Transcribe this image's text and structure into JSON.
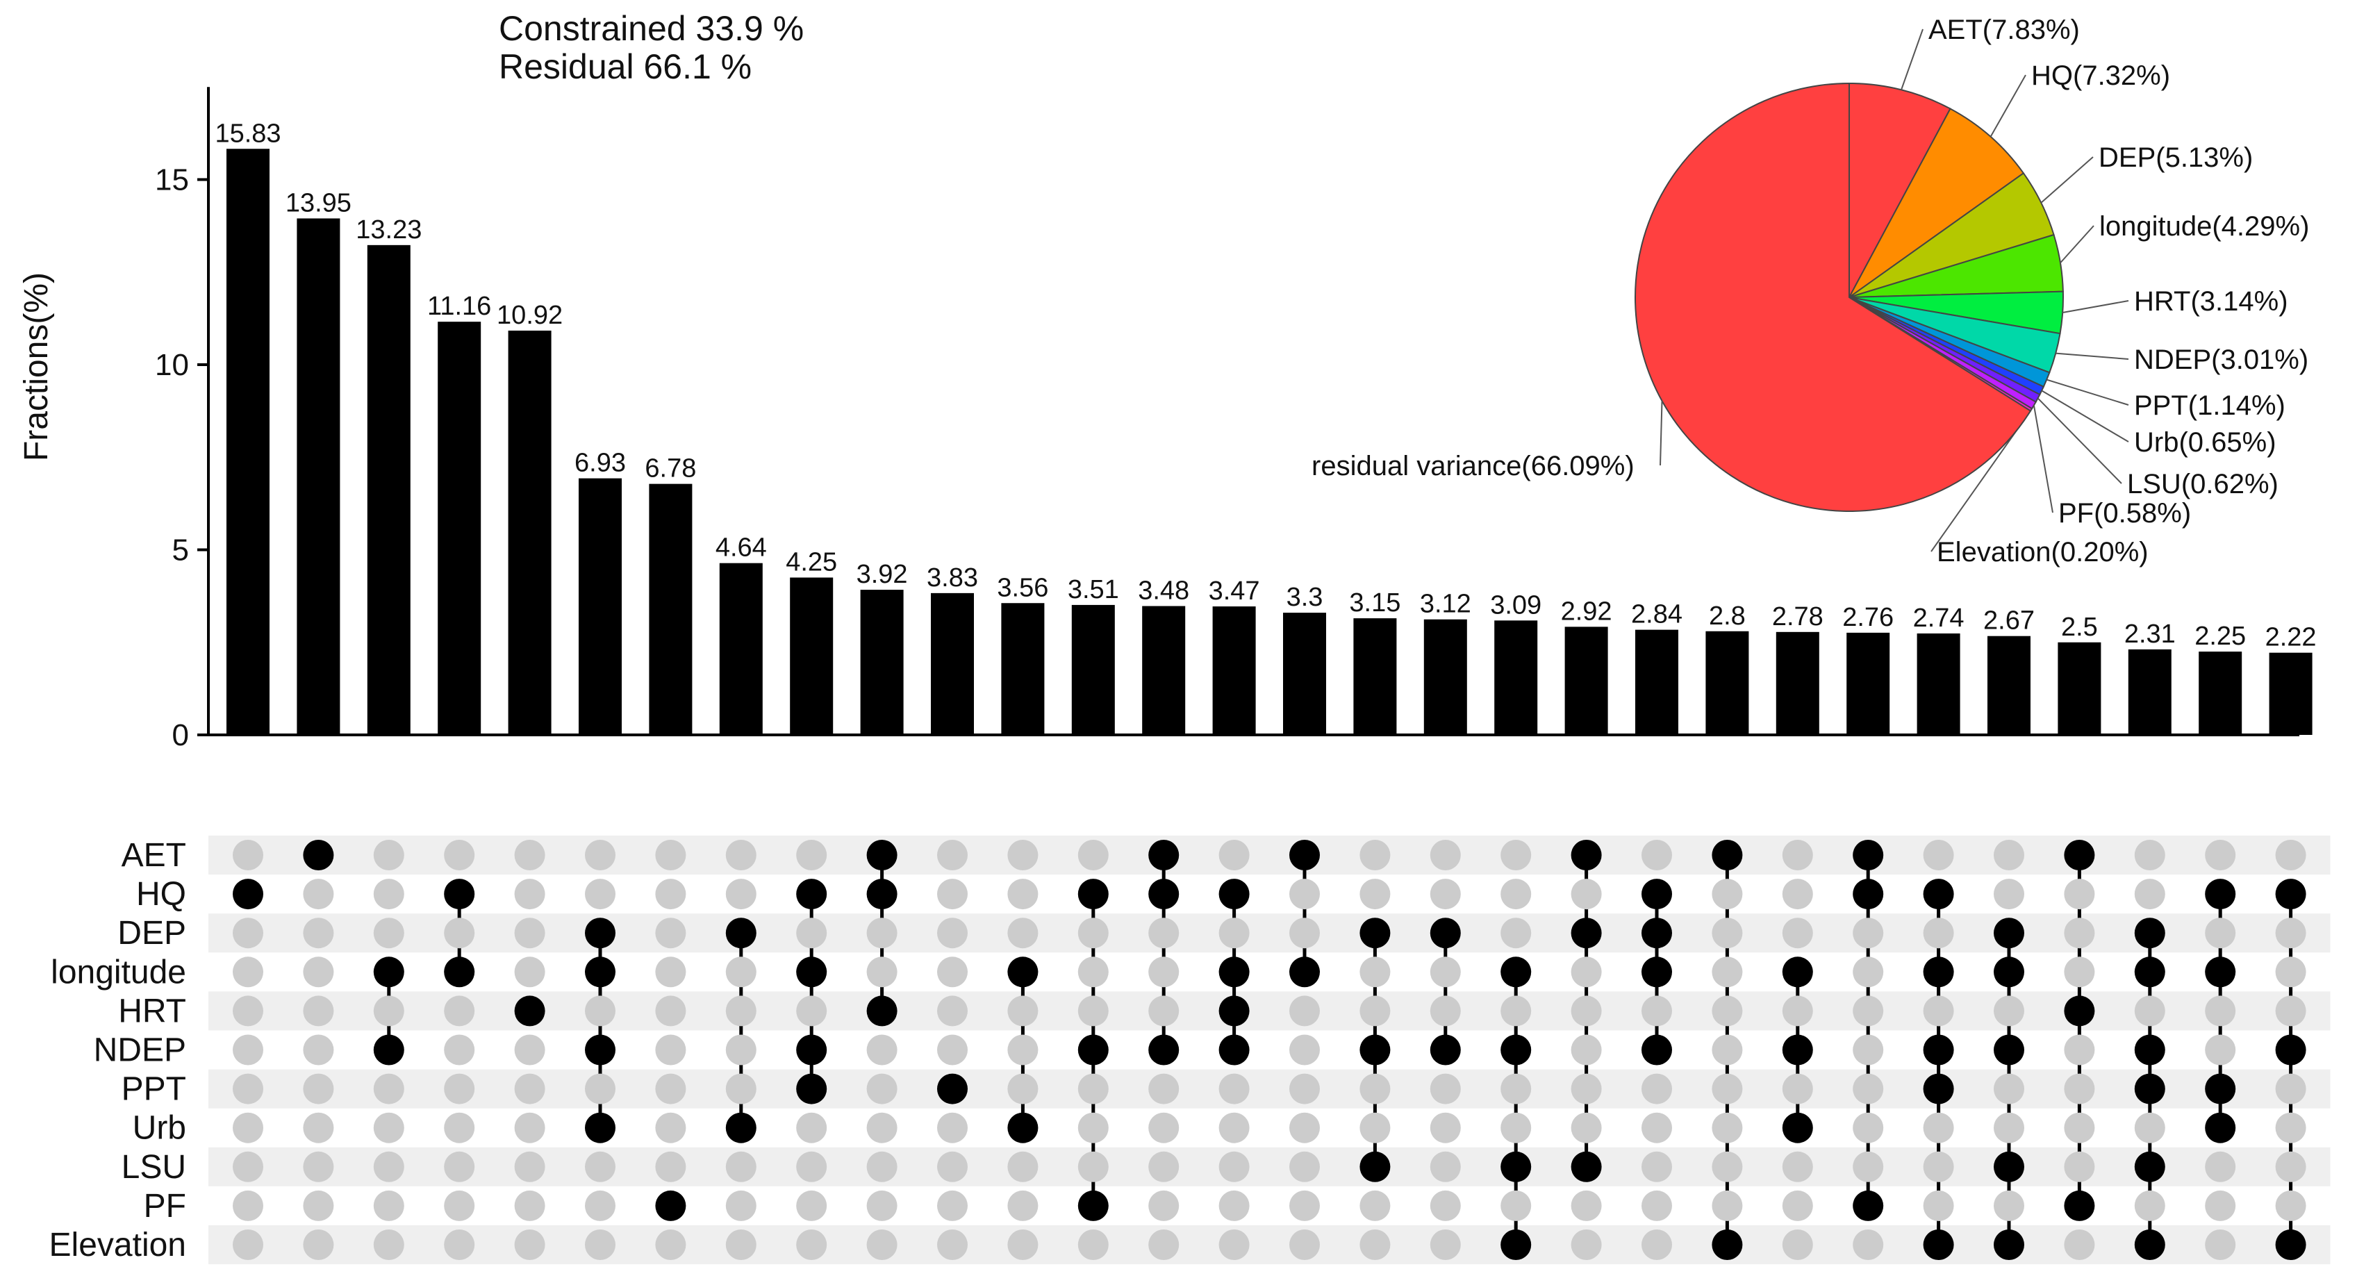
{
  "chart_data": {
    "type": "upset",
    "header": {
      "constrained": "Constrained 33.9 %",
      "residual": "Residual 66.1 %"
    },
    "bars": {
      "ylabel": "Fractions(%)",
      "ylim": [
        0,
        17.5
      ],
      "yticks": [
        0,
        5,
        10,
        15
      ],
      "values": [
        15.83,
        13.95,
        13.23,
        11.16,
        10.92,
        6.93,
        6.78,
        4.64,
        4.25,
        3.92,
        3.83,
        3.56,
        3.51,
        3.48,
        3.47,
        3.3,
        3.15,
        3.12,
        3.09,
        2.92,
        2.84,
        2.8,
        2.78,
        2.76,
        2.74,
        2.67,
        2.5,
        2.31,
        2.25,
        2.22
      ],
      "labels": [
        "15.83",
        "13.95",
        "13.23",
        "11.16",
        "10.92",
        "6.93",
        "6.78",
        "4.64",
        "4.25",
        "3.92",
        "3.83",
        "3.56",
        "3.51",
        "3.48",
        "3.47",
        "3.3",
        "3.15",
        "3.12",
        "3.09",
        "2.92",
        "2.84",
        "2.8",
        "2.78",
        "2.76",
        "2.74",
        "2.67",
        "2.5",
        "2.31",
        "2.25",
        "2.22"
      ]
    },
    "sets": [
      "AET",
      "HQ",
      "DEP",
      "longitude",
      "HRT",
      "NDEP",
      "PPT",
      "Urb",
      "LSU",
      "PF",
      "Elevation"
    ],
    "intersections": [
      [
        1
      ],
      [
        0
      ],
      [
        3,
        5
      ],
      [
        1,
        3
      ],
      [
        4
      ],
      [
        2,
        3,
        5,
        7
      ],
      [
        9
      ],
      [
        2,
        7
      ],
      [
        1,
        3,
        5,
        6
      ],
      [
        0,
        1,
        4
      ],
      [
        6
      ],
      [
        3,
        7
      ],
      [
        1,
        5,
        9
      ],
      [
        0,
        1,
        5
      ],
      [
        1,
        3,
        4,
        5
      ],
      [
        0,
        3
      ],
      [
        2,
        5,
        8
      ],
      [
        2,
        5
      ],
      [
        3,
        5,
        8,
        10
      ],
      [
        0,
        2,
        8
      ],
      [
        1,
        2,
        3,
        5
      ],
      [
        0,
        10
      ],
      [
        3,
        5,
        7
      ],
      [
        0,
        1,
        9
      ],
      [
        1,
        3,
        5,
        6,
        10
      ],
      [
        2,
        3,
        5,
        8,
        10
      ],
      [
        0,
        4,
        9
      ],
      [
        2,
        3,
        5,
        6,
        8,
        10
      ],
      [
        1,
        3,
        6,
        7
      ],
      [
        1,
        5,
        10
      ]
    ],
    "pie": {
      "slices": [
        {
          "name": "AET",
          "value": 7.83,
          "label": "AET(7.83%)",
          "color": "#ff4040"
        },
        {
          "name": "HQ",
          "value": 7.32,
          "label": "HQ(7.32%)",
          "color": "#ff8c00"
        },
        {
          "name": "DEP",
          "value": 5.13,
          "label": "DEP(5.13%)",
          "color": "#b4c800"
        },
        {
          "name": "longitude",
          "value": 4.29,
          "label": "longitude(4.29%)",
          "color": "#4ce600"
        },
        {
          "name": "HRT",
          "value": 3.14,
          "label": "HRT(3.14%)",
          "color": "#00ee40"
        },
        {
          "name": "NDEP",
          "value": 3.01,
          "label": "NDEP(3.01%)",
          "color": "#00d8a8"
        },
        {
          "name": "PPT",
          "value": 1.14,
          "label": "PPT(1.14%)",
          "color": "#0096d8"
        },
        {
          "name": "Urb",
          "value": 0.65,
          "label": "Urb(0.65%)",
          "color": "#2040ff"
        },
        {
          "name": "LSU",
          "value": 0.62,
          "label": "LSU(0.62%)",
          "color": "#7020ff"
        },
        {
          "name": "PF",
          "value": 0.58,
          "label": "PF(0.58%)",
          "color": "#c020ff"
        },
        {
          "name": "Elevation",
          "value": 0.2,
          "label": "Elevation(0.20%)",
          "color": "#ff20d0"
        },
        {
          "name": "residual variance",
          "value": 66.09,
          "label": "residual variance(66.09%)",
          "color": "#ff4040"
        }
      ]
    },
    "colors": {
      "bar": "#000000",
      "dot_on": "#000000",
      "dot_off": "#cccccc",
      "stripe": "#efefef"
    }
  }
}
